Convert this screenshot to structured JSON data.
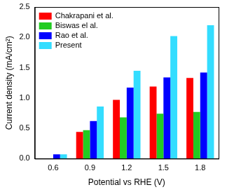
{
  "chart_data": {
    "type": "bar",
    "x_label": "Potential vs RHE (V)",
    "y_label": "Current density (mA/cm²)",
    "categories": [
      "0.6",
      "0.9",
      "1.2",
      "1.5",
      "1.8"
    ],
    "series": [
      {
        "name": "Chakrapani et al.",
        "color": "#ff0000",
        "values": [
          null,
          0.44,
          0.97,
          1.19,
          1.33
        ]
      },
      {
        "name": "Biswas el al.",
        "color": "#22cc22",
        "values": [
          null,
          0.47,
          0.68,
          0.74,
          0.77
        ]
      },
      {
        "name": "Rao et al.",
        "color": "#0000ff",
        "values": [
          0.07,
          0.62,
          1.17,
          1.34,
          1.42
        ]
      },
      {
        "name": "Present",
        "color": "#33ddff",
        "values": [
          0.07,
          0.86,
          1.45,
          2.02,
          2.2
        ]
      }
    ],
    "ylim": [
      0,
      2.5
    ],
    "yticks": [
      {
        "value": 0,
        "label": "0.0"
      },
      0.5,
      {
        "value": 1,
        "label": "1.0"
      },
      1.5,
      {
        "value": 2,
        "label": "2.0"
      },
      2.5
    ],
    "grid": false,
    "legend": "upper left"
  }
}
